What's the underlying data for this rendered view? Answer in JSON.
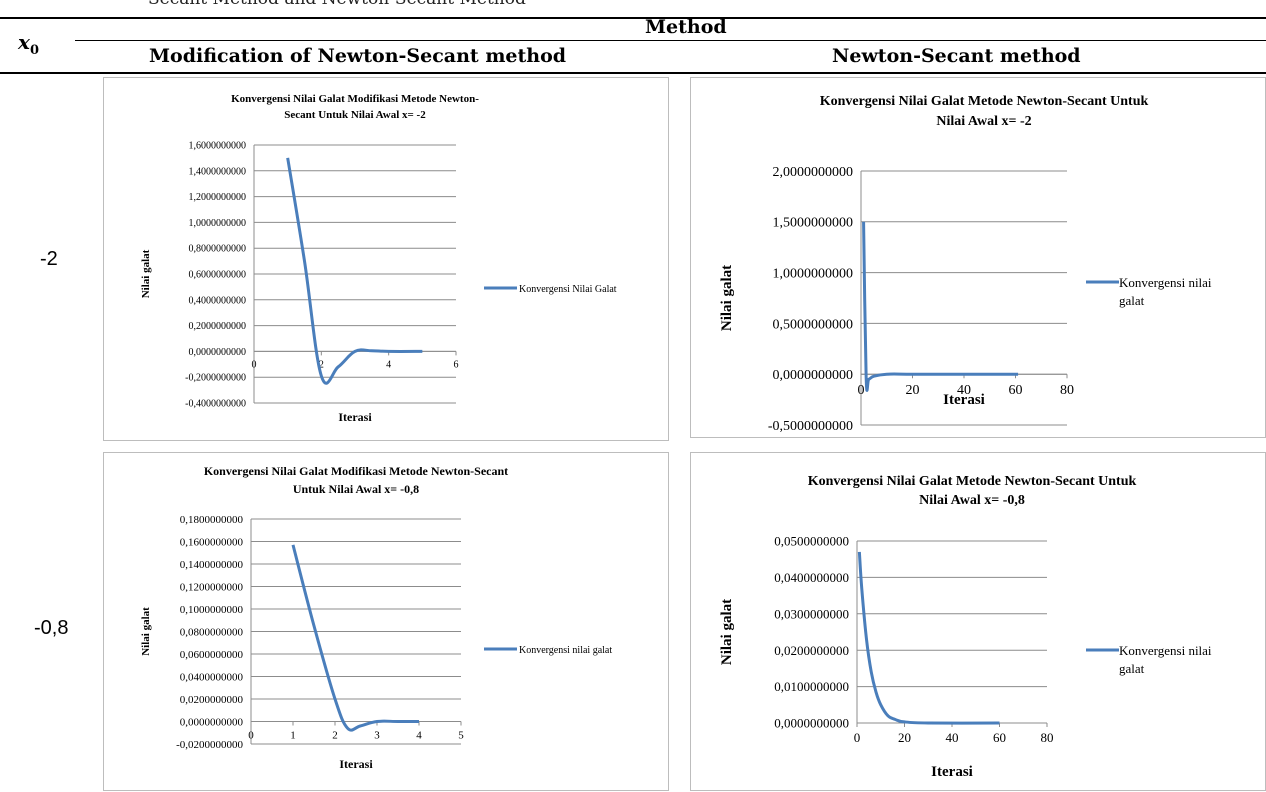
{
  "caption": "Secant Method and Newton-Secant Method",
  "header": {
    "method": "Method",
    "x0_base": "x",
    "x0_sub": "0",
    "col1": "Modification of Newton-Secant method",
    "col2": "Newton-Secant method"
  },
  "rows": [
    "-2",
    "-0,8"
  ],
  "series_color": "#4a7ebb",
  "chart_data": [
    {
      "type": "line",
      "title_lines": [
        "Konvergensi Nilai Galat Modifikasi Metode Newton-",
        "Secant Untuk  Nilai Awal  x= -2"
      ],
      "xlabel": "Iterasi",
      "ylabel": "Nilai galat",
      "legend": "Konvergensi Nilai Galat",
      "legend_position": "right",
      "xlim": [
        0,
        6
      ],
      "xticks": [
        "0",
        "2",
        "4",
        "6"
      ],
      "ylim": [
        -0.4,
        1.6
      ],
      "yticks": [
        "-0,4000000000",
        "-0,2000000000",
        "0,0000000000",
        "0,2000000000",
        "0,4000000000",
        "0,6000000000",
        "0,8000000000",
        "1,0000000000",
        "1,2000000000",
        "1,4000000000",
        "1,6000000000"
      ],
      "x": [
        1,
        1.5,
        2,
        2.5,
        3,
        3.5,
        4,
        5
      ],
      "y": [
        1.5,
        0.7,
        -0.19,
        -0.12,
        0.0,
        0.005,
        0.0,
        0.0
      ]
    },
    {
      "type": "line",
      "title_lines": [
        "Konvergensi Nilai Galat Metode Newton-Secant Untuk",
        "Nilai Awal  x= -2"
      ],
      "xlabel": "Iterasi",
      "ylabel": "Nilai galat",
      "legend": "Konvergensi nilai galat",
      "legend_position": "right",
      "xlim": [
        0,
        80
      ],
      "xticks": [
        "0",
        "20",
        "40",
        "60",
        "80"
      ],
      "ylim": [
        -0.5,
        2.0
      ],
      "yticks": [
        "-0,5000000000",
        "0,0000000000",
        "0,5000000000",
        "1,0000000000",
        "1,5000000000",
        "2,0000000000"
      ],
      "x": [
        1,
        2,
        3,
        5,
        10,
        20,
        40,
        61
      ],
      "y": [
        1.5,
        -0.03,
        -0.05,
        -0.02,
        0.0,
        0.0,
        0.0,
        0.0
      ]
    },
    {
      "type": "line",
      "title_lines": [
        "Konvergensi Nilai Galat Modifikasi Metode Newton-Secant",
        "Untuk  Nilai Awal  x= -0,8"
      ],
      "xlabel": "Iterasi",
      "ylabel": "Nilai galat",
      "legend": "Konvergensi nilai galat",
      "legend_position": "right",
      "xlim": [
        0,
        5
      ],
      "xticks": [
        "0",
        "1",
        "2",
        "3",
        "4",
        "5"
      ],
      "ylim": [
        -0.02,
        0.18
      ],
      "yticks": [
        "-0,0200000000",
        "0,0000000000",
        "0,0200000000",
        "0,0400000000",
        "0,0600000000",
        "0,0800000000",
        "0,1000000000",
        "0,1200000000",
        "0,1400000000",
        "0,1600000000",
        "0,1800000000"
      ],
      "x": [
        1,
        1.5,
        2,
        2.3,
        2.6,
        3,
        3.5,
        4
      ],
      "y": [
        0.157,
        0.085,
        0.02,
        -0.006,
        -0.004,
        0.0,
        0.0,
        0.0
      ]
    },
    {
      "type": "line",
      "title_lines": [
        "Konvergensi Nilai Galat Metode Newton-Secant Untuk",
        "Nilai Awal  x= -0,8"
      ],
      "xlabel": "Iterasi",
      "ylabel": "Nilai galat",
      "legend": "Konvergensi nilai galat",
      "legend_position": "right",
      "xlim": [
        0,
        80
      ],
      "xticks": [
        "0",
        "20",
        "40",
        "60",
        "80"
      ],
      "ylim": [
        0,
        0.05
      ],
      "yticks": [
        "0,0000000000",
        "0,0100000000",
        "0,0200000000",
        "0,0300000000",
        "0,0400000000",
        "0,0500000000"
      ],
      "x": [
        1,
        2,
        4,
        6,
        8,
        10,
        13,
        16,
        20,
        30,
        60
      ],
      "y": [
        0.047,
        0.037,
        0.023,
        0.014,
        0.0085,
        0.005,
        0.002,
        0.001,
        0.0003,
        0.0,
        0.0
      ]
    }
  ]
}
